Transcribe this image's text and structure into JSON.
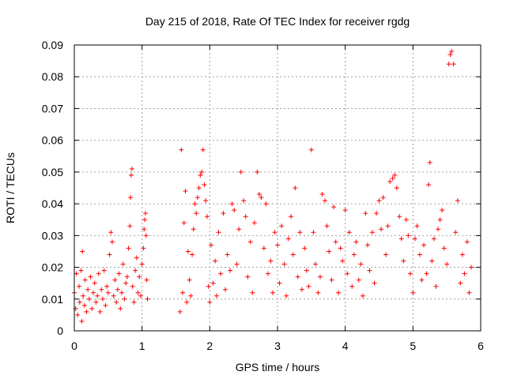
{
  "chart_data": {
    "type": "scatter",
    "title": "Day 215 of 2018, Rate Of TEC Index for receiver rgdg",
    "xlabel": "GPS time / hours",
    "ylabel": "ROTI / TECUs",
    "xlim": [
      0,
      6
    ],
    "ylim": [
      0,
      0.09
    ],
    "xticks": [
      "0",
      "1",
      "2",
      "3",
      "4",
      "5",
      "6"
    ],
    "yticks": [
      "0",
      "0.01",
      "0.02",
      "0.03",
      "0.04",
      "0.05",
      "0.06",
      "0.07",
      "0.08",
      "0.09"
    ],
    "grid": true,
    "marker": "+",
    "color": "#ff0000",
    "series": [
      {
        "name": "ROTI",
        "points": [
          [
            0.0,
            0.012
          ],
          [
            0.02,
            0.007
          ],
          [
            0.03,
            0.018
          ],
          [
            0.05,
            0.005
          ],
          [
            0.07,
            0.014
          ],
          [
            0.08,
            0.009
          ],
          [
            0.1,
            0.019
          ],
          [
            0.11,
            0.003
          ],
          [
            0.12,
            0.025
          ],
          [
            0.13,
            0.011
          ],
          [
            0.15,
            0.008
          ],
          [
            0.16,
            0.016
          ],
          [
            0.18,
            0.006
          ],
          [
            0.2,
            0.013
          ],
          [
            0.22,
            0.01
          ],
          [
            0.24,
            0.017
          ],
          [
            0.26,
            0.007
          ],
          [
            0.28,
            0.012
          ],
          [
            0.3,
            0.015
          ],
          [
            0.32,
            0.009
          ],
          [
            0.34,
            0.011
          ],
          [
            0.36,
            0.018
          ],
          [
            0.38,
            0.006
          ],
          [
            0.4,
            0.013
          ],
          [
            0.42,
            0.01
          ],
          [
            0.44,
            0.019
          ],
          [
            0.46,
            0.008
          ],
          [
            0.48,
            0.014
          ],
          [
            0.5,
            0.012
          ],
          [
            0.52,
            0.024
          ],
          [
            0.54,
            0.031
          ],
          [
            0.56,
            0.028
          ],
          [
            0.58,
            0.011
          ],
          [
            0.6,
            0.016
          ],
          [
            0.62,
            0.009
          ],
          [
            0.64,
            0.013
          ],
          [
            0.66,
            0.018
          ],
          [
            0.68,
            0.007
          ],
          [
            0.7,
            0.012
          ],
          [
            0.72,
            0.021
          ],
          [
            0.74,
            0.01
          ],
          [
            0.76,
            0.015
          ],
          [
            0.78,
            0.017
          ],
          [
            0.8,
            0.026
          ],
          [
            0.82,
            0.033
          ],
          [
            0.83,
            0.042
          ],
          [
            0.84,
            0.049
          ],
          [
            0.85,
            0.051
          ],
          [
            0.86,
            0.014
          ],
          [
            0.88,
            0.009
          ],
          [
            0.9,
            0.019
          ],
          [
            0.92,
            0.023
          ],
          [
            0.94,
            0.012
          ],
          [
            0.96,
            0.017
          ],
          [
            0.98,
            0.011
          ],
          [
            1.0,
            0.021
          ],
          [
            1.02,
            0.026
          ],
          [
            1.03,
            0.032
          ],
          [
            1.04,
            0.035
          ],
          [
            1.05,
            0.037
          ],
          [
            1.06,
            0.03
          ],
          [
            1.07,
            0.016
          ],
          [
            1.08,
            0.01
          ],
          [
            1.56,
            0.006
          ],
          [
            1.58,
            0.057
          ],
          [
            1.6,
            0.012
          ],
          [
            1.62,
            0.034
          ],
          [
            1.64,
            0.044
          ],
          [
            1.66,
            0.009
          ],
          [
            1.68,
            0.025
          ],
          [
            1.7,
            0.016
          ],
          [
            1.72,
            0.011
          ],
          [
            1.74,
            0.024
          ],
          [
            1.76,
            0.032
          ],
          [
            1.78,
            0.04
          ],
          [
            1.8,
            0.037
          ],
          [
            1.82,
            0.042
          ],
          [
            1.84,
            0.045
          ],
          [
            1.86,
            0.049
          ],
          [
            1.88,
            0.05
          ],
          [
            1.9,
            0.057
          ],
          [
            1.92,
            0.046
          ],
          [
            1.94,
            0.041
          ],
          [
            1.96,
            0.036
          ],
          [
            1.98,
            0.014
          ],
          [
            2.0,
            0.009
          ],
          [
            2.02,
            0.027
          ],
          [
            2.05,
            0.015
          ],
          [
            2.08,
            0.022
          ],
          [
            2.1,
            0.011
          ],
          [
            2.13,
            0.031
          ],
          [
            2.16,
            0.018
          ],
          [
            2.2,
            0.037
          ],
          [
            2.23,
            0.013
          ],
          [
            2.26,
            0.024
          ],
          [
            2.3,
            0.019
          ],
          [
            2.33,
            0.04
          ],
          [
            2.36,
            0.038
          ],
          [
            2.4,
            0.021
          ],
          [
            2.43,
            0.032
          ],
          [
            2.46,
            0.05
          ],
          [
            2.5,
            0.041
          ],
          [
            2.53,
            0.036
          ],
          [
            2.56,
            0.017
          ],
          [
            2.6,
            0.028
          ],
          [
            2.63,
            0.012
          ],
          [
            2.66,
            0.034
          ],
          [
            2.7,
            0.05
          ],
          [
            2.73,
            0.043
          ],
          [
            2.76,
            0.042
          ],
          [
            2.8,
            0.026
          ],
          [
            2.83,
            0.04
          ],
          [
            2.86,
            0.018
          ],
          [
            2.9,
            0.022
          ],
          [
            2.93,
            0.012
          ],
          [
            2.96,
            0.031
          ],
          [
            3.0,
            0.027
          ],
          [
            3.03,
            0.015
          ],
          [
            3.06,
            0.033
          ],
          [
            3.1,
            0.021
          ],
          [
            3.13,
            0.011
          ],
          [
            3.16,
            0.029
          ],
          [
            3.2,
            0.036
          ],
          [
            3.23,
            0.024
          ],
          [
            3.26,
            0.045
          ],
          [
            3.3,
            0.017
          ],
          [
            3.33,
            0.031
          ],
          [
            3.36,
            0.013
          ],
          [
            3.4,
            0.026
          ],
          [
            3.43,
            0.019
          ],
          [
            3.46,
            0.014
          ],
          [
            3.5,
            0.057
          ],
          [
            3.53,
            0.031
          ],
          [
            3.56,
            0.021
          ],
          [
            3.6,
            0.012
          ],
          [
            3.63,
            0.017
          ],
          [
            3.66,
            0.043
          ],
          [
            3.7,
            0.041
          ],
          [
            3.73,
            0.033
          ],
          [
            3.76,
            0.025
          ],
          [
            3.8,
            0.016
          ],
          [
            3.83,
            0.039
          ],
          [
            3.86,
            0.028
          ],
          [
            3.9,
            0.012
          ],
          [
            3.93,
            0.026
          ],
          [
            3.96,
            0.022
          ],
          [
            4.0,
            0.038
          ],
          [
            4.03,
            0.018
          ],
          [
            4.06,
            0.031
          ],
          [
            4.1,
            0.014
          ],
          [
            4.13,
            0.024
          ],
          [
            4.16,
            0.028
          ],
          [
            4.2,
            0.016
          ],
          [
            4.23,
            0.021
          ],
          [
            4.26,
            0.011
          ],
          [
            4.3,
            0.037
          ],
          [
            4.33,
            0.027
          ],
          [
            4.36,
            0.019
          ],
          [
            4.4,
            0.031
          ],
          [
            4.43,
            0.015
          ],
          [
            4.46,
            0.037
          ],
          [
            4.5,
            0.041
          ],
          [
            4.53,
            0.032
          ],
          [
            4.56,
            0.042
          ],
          [
            4.6,
            0.024
          ],
          [
            4.63,
            0.033
          ],
          [
            4.66,
            0.047
          ],
          [
            4.7,
            0.048
          ],
          [
            4.73,
            0.049
          ],
          [
            4.76,
            0.045
          ],
          [
            4.8,
            0.036
          ],
          [
            4.83,
            0.029
          ],
          [
            4.86,
            0.022
          ],
          [
            4.9,
            0.035
          ],
          [
            4.93,
            0.03
          ],
          [
            4.96,
            0.018
          ],
          [
            5.0,
            0.012
          ],
          [
            5.03,
            0.029
          ],
          [
            5.06,
            0.033
          ],
          [
            5.1,
            0.024
          ],
          [
            5.13,
            0.016
          ],
          [
            5.16,
            0.027
          ],
          [
            5.2,
            0.018
          ],
          [
            5.23,
            0.046
          ],
          [
            5.25,
            0.053
          ],
          [
            5.28,
            0.022
          ],
          [
            5.31,
            0.029
          ],
          [
            5.34,
            0.014
          ],
          [
            5.37,
            0.032
          ],
          [
            5.4,
            0.035
          ],
          [
            5.43,
            0.038
          ],
          [
            5.46,
            0.026
          ],
          [
            5.5,
            0.021
          ],
          [
            5.53,
            0.084
          ],
          [
            5.55,
            0.087
          ],
          [
            5.57,
            0.088
          ],
          [
            5.6,
            0.084
          ],
          [
            5.63,
            0.031
          ],
          [
            5.66,
            0.041
          ],
          [
            5.7,
            0.015
          ],
          [
            5.73,
            0.024
          ],
          [
            5.76,
            0.018
          ],
          [
            5.8,
            0.028
          ],
          [
            5.83,
            0.012
          ],
          [
            5.86,
            0.02
          ]
        ]
      }
    ]
  }
}
